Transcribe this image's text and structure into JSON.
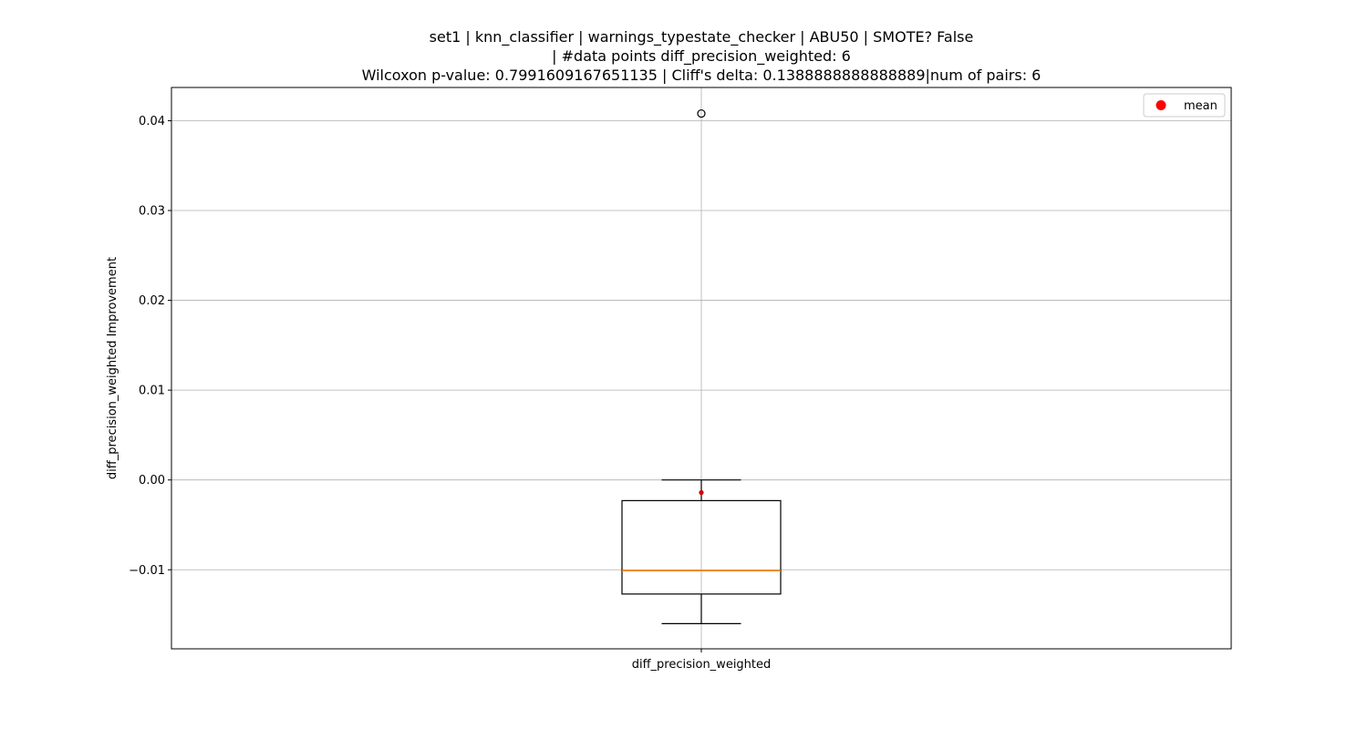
{
  "chart_data": {
    "type": "box",
    "title_lines": [
      "set1 | knn_classifier | warnings_typestate_checker | ABU50 | SMOTE? False",
      "| #data points diff_precision_weighted: 6",
      "Wilcoxon p-value: 0.7991609167651135 | Cliff's delta: 0.1388888888888889|num of pairs: 6"
    ],
    "xlabel": "",
    "ylabel": "diff_precision_weighted Improvement",
    "categories": [
      "diff_precision_weighted"
    ],
    "ylim": [
      -0.0188,
      0.0437
    ],
    "yticks": [
      -0.01,
      0.0,
      0.01,
      0.02,
      0.03,
      0.04
    ],
    "ytick_labels": [
      "−0.01",
      "0.00",
      "0.01",
      "0.02",
      "0.03",
      "0.04"
    ],
    "grid": true,
    "legend": {
      "position": "upper right",
      "entries": [
        {
          "label": "mean",
          "color": "#ff0000",
          "marker": "circle"
        }
      ]
    },
    "boxes": [
      {
        "category": "diff_precision_weighted",
        "whisker_low": -0.016,
        "q1": -0.0127,
        "median": -0.0101,
        "q3": -0.0023,
        "whisker_high": 0.0,
        "mean": -0.0014,
        "outliers": [
          0.0408
        ]
      }
    ],
    "colors": {
      "box": "#000000",
      "median": "#ff7f0e",
      "mean": "#cc0000",
      "grid": "#b0b0b0"
    }
  }
}
